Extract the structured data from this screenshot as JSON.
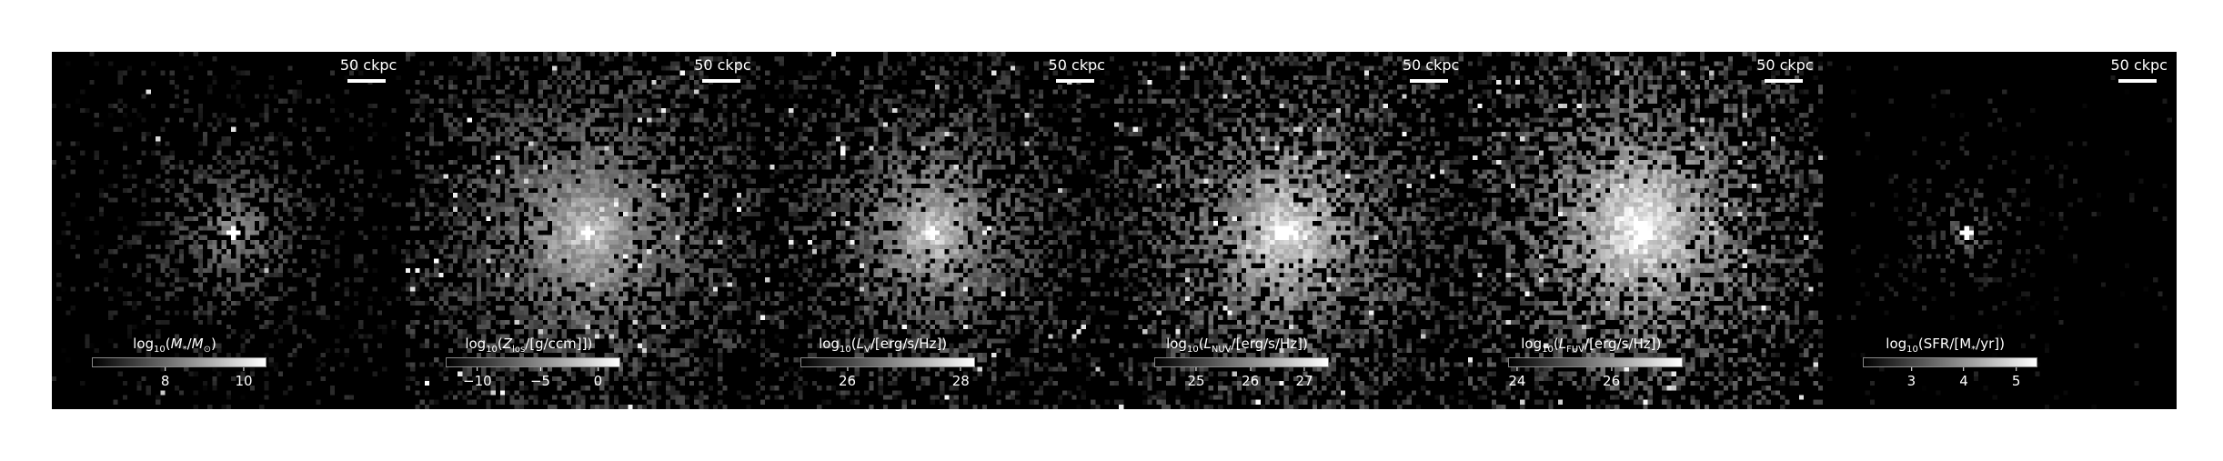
{
  "panels": [
    {
      "scale_label": "50 ckpc",
      "colorbar_label_html": "log<sub>10</sub>(<i>M</i><sub>*</sub>/<i>M</i><sub>⊙</sub>)",
      "colorbar_ticks": [
        {
          "label": "8",
          "frac": 0.42
        },
        {
          "label": "10",
          "frac": 0.87
        }
      ]
    },
    {
      "scale_label": "50 ckpc",
      "colorbar_label_html": "log<sub>10</sub>(<i>Z</i><sub>los</sub>/[g/ccm]])",
      "colorbar_ticks": [
        {
          "label": "−10",
          "frac": 0.18
        },
        {
          "label": "−5",
          "frac": 0.54
        },
        {
          "label": "0",
          "frac": 0.87
        }
      ]
    },
    {
      "scale_label": "50 ckpc",
      "colorbar_label_html": "log<sub>10</sub>(<i>L</i><sub>V</sub>/[erg/s/Hz])",
      "colorbar_ticks": [
        {
          "label": "26",
          "frac": 0.27
        },
        {
          "label": "28",
          "frac": 0.92
        }
      ]
    },
    {
      "scale_label": "50 ckpc",
      "colorbar_label_html": "log<sub>10</sub>(<i>L</i><sub>NUV</sub>/[erg/s/Hz])",
      "colorbar_ticks": [
        {
          "label": "25",
          "frac": 0.24
        },
        {
          "label": "26",
          "frac": 0.55
        },
        {
          "label": "27",
          "frac": 0.86
        }
      ]
    },
    {
      "scale_label": "50 ckpc",
      "colorbar_label_html": "log<sub>10</sub>(<i>L</i><sub>FUV</sub>/[erg/s/Hz])",
      "colorbar_ticks": [
        {
          "label": "24",
          "frac": 0.05
        },
        {
          "label": "26",
          "frac": 0.59
        }
      ]
    },
    {
      "scale_label": "50 ckpc",
      "colorbar_label_html": "log<sub>10</sub>(SFR/[M<sub>*</sub>/yr])",
      "colorbar_ticks": [
        {
          "label": "3",
          "frac": 0.28
        },
        {
          "label": "4",
          "frac": 0.58
        },
        {
          "label": "5",
          "frac": 0.88
        }
      ]
    }
  ]
}
